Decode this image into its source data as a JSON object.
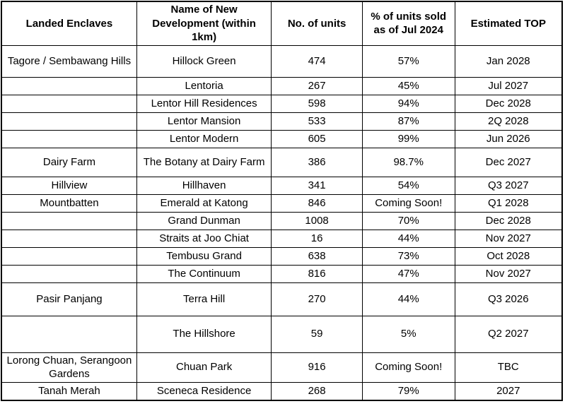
{
  "colors": {
    "border": "#000000",
    "text": "#000000",
    "background": "#ffffff"
  },
  "chart_data": {
    "type": "table",
    "title": "",
    "columns": [
      "Landed Enclaves",
      "Name of New Development (within 1km)",
      "No. of units",
      "% of units sold as of Jul 2024",
      "Estimated TOP"
    ],
    "rows": [
      {
        "enclave": "Tagore / Sembawang Hills",
        "development": "Hillock Green",
        "units": "474",
        "sold": "57%",
        "top": "Jan 2028"
      },
      {
        "enclave": "",
        "development": "Lentoria",
        "units": "267",
        "sold": "45%",
        "top": "Jul 2027"
      },
      {
        "enclave": "",
        "development": "Lentor Hill Residences",
        "units": "598",
        "sold": "94%",
        "top": "Dec 2028"
      },
      {
        "enclave": "",
        "development": "Lentor Mansion",
        "units": "533",
        "sold": "87%",
        "top": "2Q 2028"
      },
      {
        "enclave": "",
        "development": "Lentor Modern",
        "units": "605",
        "sold": "99%",
        "top": "Jun 2026"
      },
      {
        "enclave": "Dairy Farm",
        "development": "The Botany at Dairy Farm",
        "units": "386",
        "sold": "98.7%",
        "top": "Dec 2027"
      },
      {
        "enclave": "Hillview",
        "development": "Hillhaven",
        "units": "341",
        "sold": "54%",
        "top": "Q3 2027"
      },
      {
        "enclave": "Mountbatten",
        "development": "Emerald at Katong",
        "units": "846",
        "sold": "Coming Soon!",
        "top": "Q1 2028"
      },
      {
        "enclave": "",
        "development": "Grand Dunman",
        "units": "1008",
        "sold": "70%",
        "top": "Dec 2028"
      },
      {
        "enclave": "",
        "development": "Straits at Joo Chiat",
        "units": "16",
        "sold": "44%",
        "top": "Nov 2027"
      },
      {
        "enclave": "",
        "development": "Tembusu Grand",
        "units": "638",
        "sold": "73%",
        "top": "Oct 2028"
      },
      {
        "enclave": "",
        "development": "The Continuum",
        "units": "816",
        "sold": "47%",
        "top": "Nov 2027"
      },
      {
        "enclave": "Pasir Panjang",
        "development": "Terra Hill",
        "units": "270",
        "sold": "44%",
        "top": "Q3 2026"
      },
      {
        "enclave": "",
        "development": "The Hillshore",
        "units": "59",
        "sold": "5%",
        "top": "Q2 2027"
      },
      {
        "enclave": "Lorong Chuan, Serangoon Gardens",
        "development": "Chuan Park",
        "units": "916",
        "sold": "Coming Soon!",
        "top": "TBC"
      },
      {
        "enclave": "Tanah Merah",
        "development": "Sceneca Residence",
        "units": "268",
        "sold": "79%",
        "top": "2027"
      }
    ]
  }
}
